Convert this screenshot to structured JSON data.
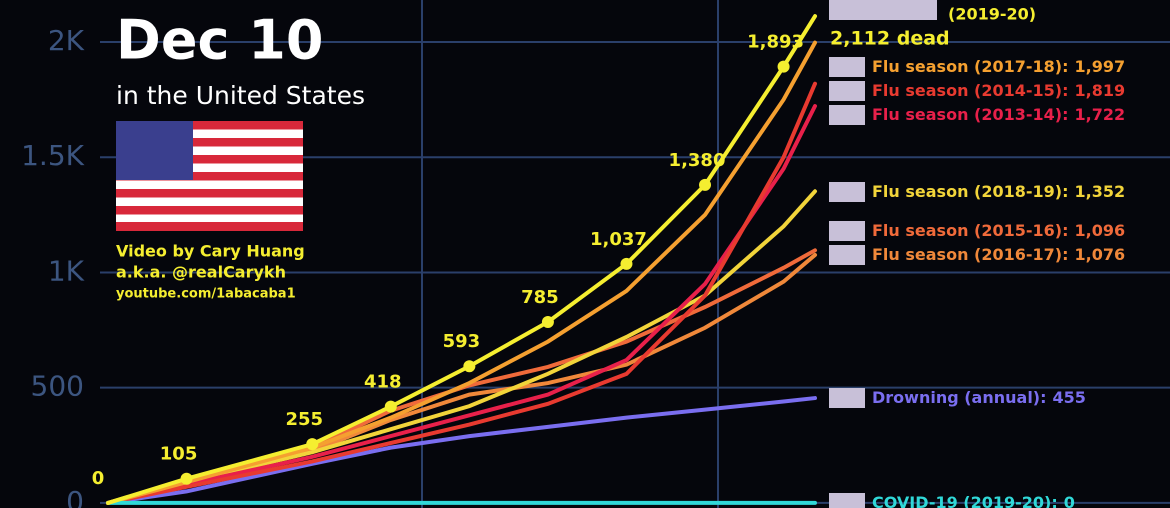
{
  "chart_data": {
    "type": "line",
    "headline": "Dec 10",
    "subheadline": "in the United States",
    "credits": [
      "Video by Cary Huang",
      "a.k.a. @realCarykh",
      "youtube.com/1abacaba1"
    ],
    "x": [
      0,
      1,
      2.6,
      3.6,
      4.6,
      5.6,
      6.6,
      7.6,
      8.6,
      9
    ],
    "xlim": [
      -0.2,
      10.3
    ],
    "ylim": [
      -22,
      2182
    ],
    "yticks": [
      0,
      500,
      {
        "value": 1000,
        "label": "1K"
      },
      {
        "value": 1500,
        "label": "1.5K"
      },
      {
        "value": 2000,
        "label": "2K"
      }
    ],
    "grid": true,
    "series": [
      {
        "name": "Drowning (annual):",
        "color": "#7a6ef0",
        "values": [
          0,
          50,
          170,
          240,
          290,
          330,
          370,
          405,
          440,
          455
        ],
        "value_labels": [
          null,
          null,
          null,
          null,
          null,
          null,
          null,
          null,
          null,
          "455"
        ]
      },
      {
        "name": "Flu season (2016-17):",
        "color": "#f0883a",
        "values": [
          0,
          95,
          225,
          360,
          470,
          520,
          600,
          760,
          960,
          1076
        ],
        "value_labels": [
          null,
          null,
          null,
          null,
          null,
          null,
          null,
          null,
          null,
          "1,076"
        ]
      },
      {
        "name": "Flu season (2015-16):",
        "color": "#f06a3a",
        "values": [
          0,
          100,
          240,
          400,
          510,
          590,
          700,
          850,
          1020,
          1096
        ],
        "value_labels": [
          null,
          null,
          null,
          null,
          null,
          null,
          null,
          null,
          null,
          "1,096"
        ]
      },
      {
        "name": "Flu season (2018-19):",
        "color": "#f2d43a",
        "values": [
          0,
          90,
          220,
          320,
          420,
          560,
          720,
          900,
          1200,
          1352
        ],
        "value_labels": [
          null,
          null,
          null,
          null,
          null,
          null,
          null,
          null,
          null,
          "1,352"
        ]
      },
      {
        "name": "Flu season (2013-14):",
        "color": "#e8204a",
        "values": [
          0,
          80,
          200,
          290,
          380,
          470,
          620,
          950,
          1450,
          1722
        ],
        "value_labels": [
          null,
          null,
          null,
          null,
          null,
          null,
          null,
          null,
          null,
          "1,722"
        ]
      },
      {
        "name": "Flu season (2014-15):",
        "color": "#e83a30",
        "values": [
          0,
          70,
          180,
          260,
          340,
          430,
          560,
          900,
          1500,
          1819
        ],
        "value_labels": [
          null,
          null,
          null,
          null,
          null,
          null,
          null,
          null,
          null,
          "1,819"
        ]
      },
      {
        "name": "Flu season (2017-18):",
        "color": "#f5a030",
        "values": [
          0,
          90,
          240,
          370,
          520,
          700,
          920,
          1250,
          1750,
          1997
        ],
        "value_labels": [
          null,
          null,
          null,
          null,
          null,
          null,
          null,
          null,
          null,
          "1,997"
        ]
      },
      {
        "name": "COVID-19 (2019-20):",
        "color": "#30d8d8",
        "values": [
          0,
          0,
          0,
          0,
          0,
          0,
          0,
          0,
          0,
          0
        ],
        "value_labels": [
          null,
          null,
          null,
          null,
          null,
          null,
          null,
          null,
          null,
          "0"
        ]
      },
      {
        "name": "(2019-20)",
        "color": "#f5ee30",
        "values": [
          0,
          105,
          255,
          418,
          593,
          785,
          1037,
          1380,
          1893,
          2112
        ],
        "value_labels": [
          "0",
          "105",
          "255",
          "418",
          "593",
          "785",
          "1,037",
          "1,380",
          "1,893",
          "2,112 dead"
        ]
      }
    ]
  }
}
